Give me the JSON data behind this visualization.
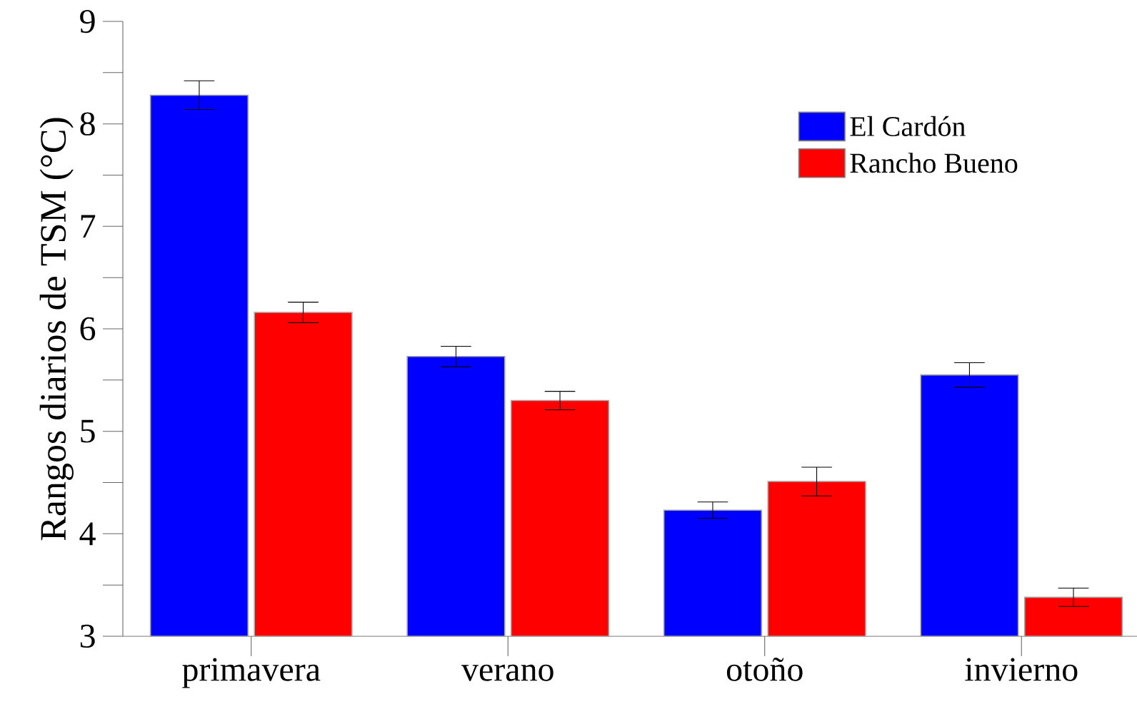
{
  "chart_data": {
    "type": "bar",
    "ylabel": "Rangos diarios de TSM (°C)",
    "categories": [
      "primavera",
      "verano",
      "otoño",
      "invierno"
    ],
    "series": [
      {
        "name": "El Cardón",
        "color": "#0000ff",
        "values": [
          8.28,
          5.73,
          4.23,
          5.55
        ],
        "errors": [
          0.14,
          0.1,
          0.08,
          0.12
        ]
      },
      {
        "name": "Rancho Bueno",
        "color": "#ff0000",
        "values": [
          6.16,
          5.3,
          4.51,
          3.38
        ],
        "errors": [
          0.1,
          0.09,
          0.14,
          0.09
        ]
      }
    ],
    "ylim": [
      3,
      9
    ],
    "yticks": [
      3,
      {
        "value": 3.5,
        "label": null
      },
      4,
      {
        "value": 4.5,
        "label": null
      },
      5,
      {
        "value": 5.5,
        "label": null
      },
      6,
      {
        "value": 6.5,
        "label": null
      },
      7,
      {
        "value": 7.5,
        "label": null
      },
      8,
      {
        "value": 8.5,
        "label": null
      },
      9
    ],
    "legend": "top right"
  }
}
